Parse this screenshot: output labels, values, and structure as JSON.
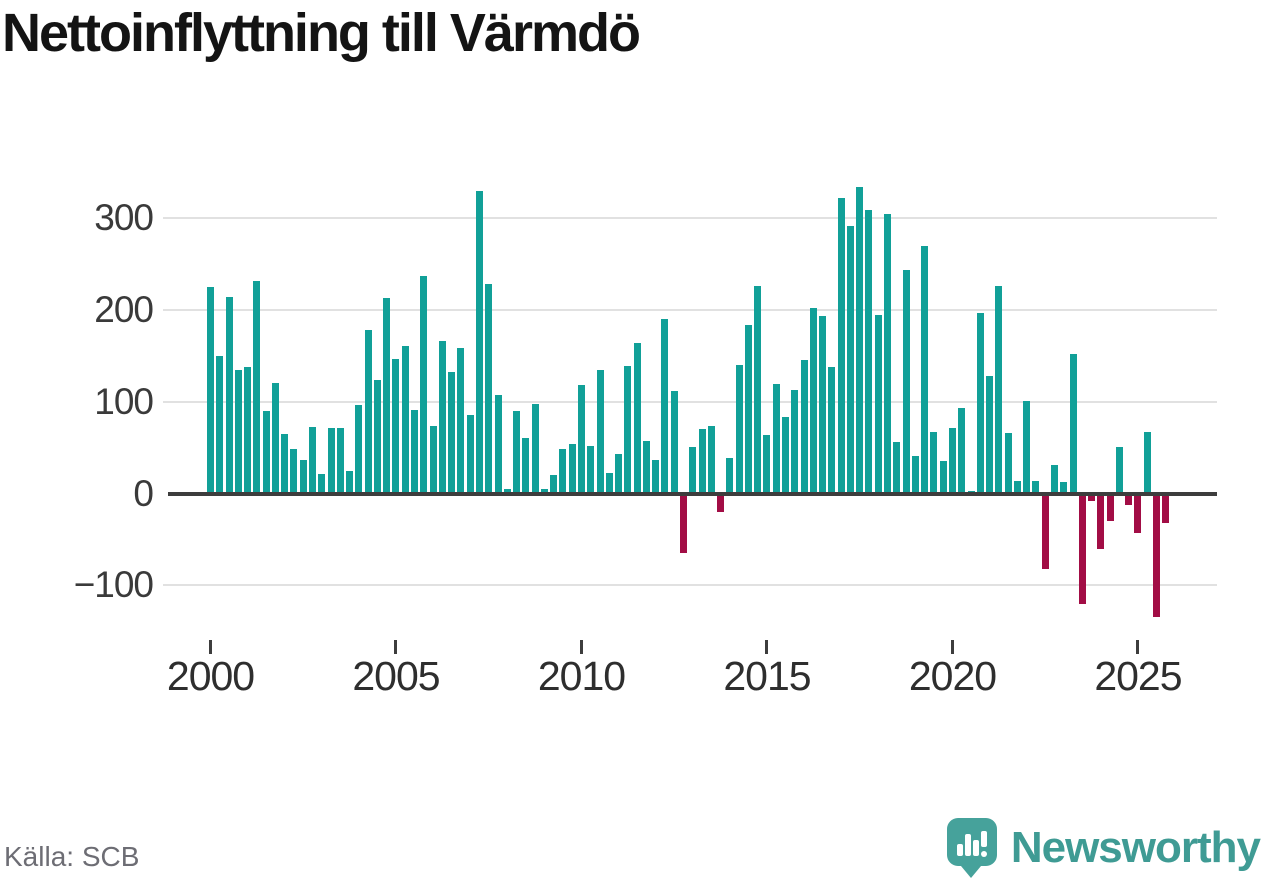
{
  "title": "Nettoinflyttning till Värmdö",
  "source": "Källa: SCB",
  "branding": {
    "name": "Newsworthy",
    "icon": "newsworthy-speech-bubble-chart-icon",
    "icon_color": "#46a29b",
    "text_color": "#3f9b94"
  },
  "chart_data": {
    "type": "bar",
    "title": "Nettoinflyttning till Värmdö",
    "frequency": "quarterly",
    "start": "2000 Q1",
    "end": "2025 Q4",
    "values": [
      225,
      150,
      214,
      135,
      138,
      231,
      90,
      120,
      65,
      49,
      37,
      72,
      21,
      71,
      71,
      25,
      96,
      178,
      124,
      213,
      146,
      161,
      91,
      237,
      74,
      166,
      132,
      159,
      85,
      330,
      228,
      107,
      5,
      90,
      60,
      97,
      5,
      20,
      49,
      54,
      118,
      52,
      134,
      22,
      43,
      139,
      164,
      57,
      37,
      190,
      112,
      -65,
      51,
      70,
      74,
      -20,
      39,
      140,
      184,
      226,
      64,
      119,
      83,
      113,
      145,
      202,
      193,
      138,
      322,
      291,
      334,
      309,
      194,
      305,
      56,
      244,
      41,
      270,
      67,
      35,
      71,
      93,
      3,
      197,
      128,
      226,
      66,
      14,
      101,
      14,
      -82,
      31,
      13,
      152,
      -120,
      -8,
      -61,
      -30,
      51,
      -12,
      -43,
      67,
      -135,
      -32
    ],
    "xtick_labels": [
      "2000",
      "2005",
      "2010",
      "2015",
      "2020",
      "2025"
    ],
    "yticks": [
      300,
      200,
      100,
      0,
      -100
    ],
    "ytick_labels": [
      "300",
      "200",
      "100",
      "0",
      "−100"
    ],
    "ylim": [
      -150,
      360
    ],
    "grid": "horizontal",
    "positive_color": "#11a098",
    "negative_color": "#a20d45",
    "zero_line_color": "#3d3d3d",
    "gridline_color": "#e1e1e1"
  }
}
